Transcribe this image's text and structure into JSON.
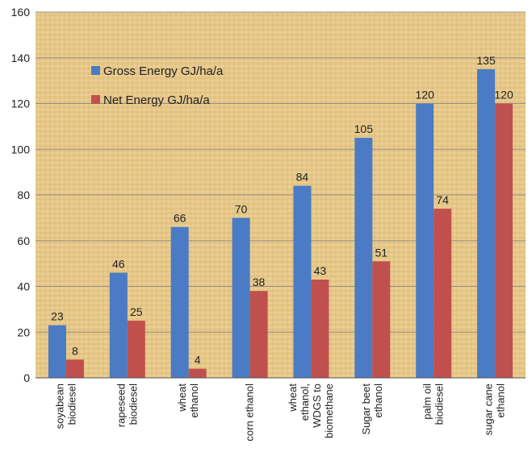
{
  "chart_data": {
    "type": "bar",
    "title": "",
    "xlabel": "",
    "ylabel": "",
    "ylim": [
      0,
      160
    ],
    "yticks": [
      0,
      20,
      40,
      60,
      80,
      100,
      120,
      140,
      160
    ],
    "grid": true,
    "legend_position": "top-left",
    "categories": [
      [
        "soyabean",
        "biodiesel"
      ],
      [
        "rapeseed",
        "biodiesel"
      ],
      [
        "wheat",
        "ethanol"
      ],
      [
        "corn ethanol"
      ],
      [
        "wheat",
        "ethanol,",
        "WDGS to",
        "biomethane"
      ],
      [
        "Sugar beet",
        "ethanol"
      ],
      [
        "palm oil",
        "biodiesel"
      ],
      [
        "sugar cane",
        "ethanol"
      ]
    ],
    "series": [
      {
        "name": "Gross Energy GJ/ha/a",
        "color": "#4a7bc4",
        "values": [
          23,
          46,
          66,
          70,
          84,
          105,
          120,
          135
        ]
      },
      {
        "name": "Net Energy GJ/ha/a",
        "color": "#c0504d",
        "values": [
          8,
          25,
          4,
          38,
          43,
          51,
          74,
          120
        ]
      }
    ],
    "background_color": "#e6c98a",
    "gridline_color": "#9a8f88"
  }
}
